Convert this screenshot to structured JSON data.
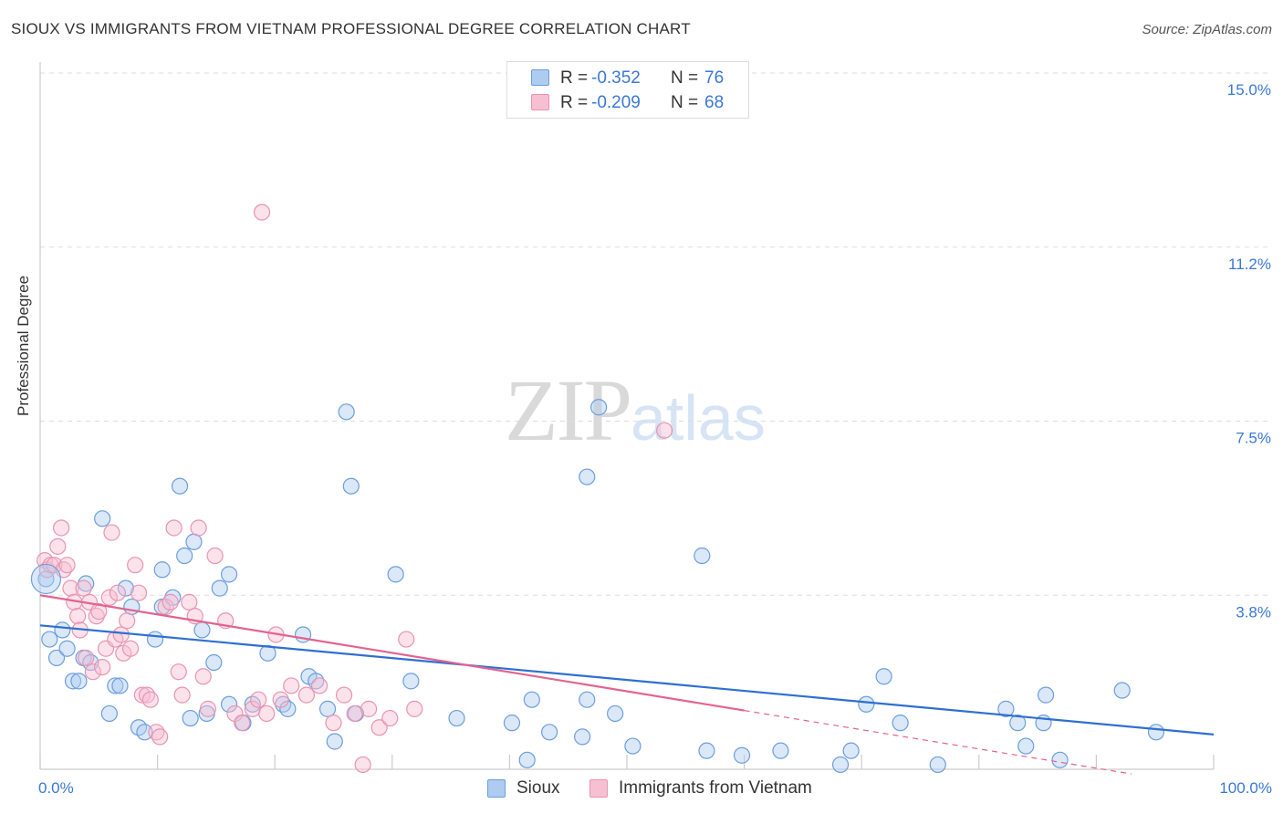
{
  "title": "SIOUX VS IMMIGRANTS FROM VIETNAM PROFESSIONAL DEGREE CORRELATION CHART",
  "source": "Source: ZipAtlas.com",
  "watermark": {
    "zip": "ZIP",
    "atlas": "atlas"
  },
  "colors": {
    "sioux_fill": "#aecbf0",
    "sioux_stroke": "#6c9ede",
    "sioux_line": "#2f6fd0",
    "vietnam_fill": "#f7bfd2",
    "vietnam_stroke": "#e994b0",
    "vietnam_line": "#e2638f",
    "tick_label": "#3a78d6",
    "grid": "#dddddd"
  },
  "legend": {
    "series": [
      {
        "r_label": "R =",
        "r_value": "-0.352",
        "n_label": "N =",
        "n_value": "76"
      },
      {
        "r_label": "R =",
        "r_value": "-0.209",
        "n_label": "N =",
        "n_value": "68"
      }
    ]
  },
  "bottom_legend": {
    "sioux": "Sioux",
    "vietnam": "Immigrants from Vietnam"
  },
  "chart_data": {
    "type": "scatter",
    "title": "SIOUX VS IMMIGRANTS FROM VIETNAM PROFESSIONAL DEGREE CORRELATION CHART",
    "xlabel": "",
    "ylabel": "Professional Degree",
    "xlim": [
      0,
      100
    ],
    "ylim": [
      0,
      15
    ],
    "x_tick_labels": [
      {
        "value": 0,
        "label": "0.0%"
      },
      {
        "value": 100,
        "label": "100.0%"
      }
    ],
    "y_ticks": [
      {
        "value": 3.75,
        "label": "3.8%"
      },
      {
        "value": 7.5,
        "label": "7.5%"
      },
      {
        "value": 11.25,
        "label": "11.2%"
      },
      {
        "value": 15.0,
        "label": "15.0%"
      }
    ],
    "grid": true,
    "series": [
      {
        "name": "Sioux",
        "r": -0.352,
        "n": 76,
        "trend": {
          "x0": 0,
          "y0": 3.1,
          "x1": 100,
          "y1": 0.75,
          "dashed_from": null
        },
        "points": [
          [
            0.5,
            4.1
          ],
          [
            0.8,
            2.8
          ],
          [
            1.4,
            2.4
          ],
          [
            1.9,
            3.0
          ],
          [
            2.3,
            2.6
          ],
          [
            2.8,
            1.9
          ],
          [
            3.3,
            1.9
          ],
          [
            3.7,
            2.4
          ],
          [
            3.9,
            4.0
          ],
          [
            4.3,
            2.3
          ],
          [
            5.3,
            5.4
          ],
          [
            5.9,
            1.2
          ],
          [
            6.4,
            1.8
          ],
          [
            6.8,
            1.8
          ],
          [
            7.3,
            3.9
          ],
          [
            7.8,
            3.5
          ],
          [
            8.4,
            0.9
          ],
          [
            8.9,
            0.8
          ],
          [
            9.8,
            2.8
          ],
          [
            10.4,
            3.5
          ],
          [
            10.4,
            4.3
          ],
          [
            11.3,
            3.7
          ],
          [
            11.9,
            6.1
          ],
          [
            12.3,
            4.6
          ],
          [
            12.8,
            1.1
          ],
          [
            13.1,
            4.9
          ],
          [
            13.8,
            3.0
          ],
          [
            14.2,
            1.2
          ],
          [
            14.8,
            2.3
          ],
          [
            15.3,
            3.9
          ],
          [
            16.1,
            4.2
          ],
          [
            16.1,
            1.4
          ],
          [
            17.3,
            1.0
          ],
          [
            18.1,
            1.4
          ],
          [
            19.4,
            2.5
          ],
          [
            20.7,
            1.4
          ],
          [
            21.1,
            1.3
          ],
          [
            22.4,
            2.9
          ],
          [
            22.9,
            2.0
          ],
          [
            23.5,
            1.9
          ],
          [
            24.5,
            1.3
          ],
          [
            25.1,
            0.6
          ],
          [
            26.1,
            7.7
          ],
          [
            26.5,
            6.1
          ],
          [
            26.9,
            1.2
          ],
          [
            30.3,
            4.2
          ],
          [
            31.6,
            1.9
          ],
          [
            35.5,
            1.1
          ],
          [
            40.2,
            1.0
          ],
          [
            41.5,
            0.2
          ],
          [
            41.9,
            1.5
          ],
          [
            43.4,
            0.8
          ],
          [
            46.2,
            0.7
          ],
          [
            46.6,
            1.5
          ],
          [
            46.6,
            6.3
          ],
          [
            47.6,
            7.8
          ],
          [
            49.0,
            1.2
          ],
          [
            50.5,
            0.5
          ],
          [
            56.4,
            4.6
          ],
          [
            56.8,
            0.4
          ],
          [
            59.8,
            0.3
          ],
          [
            63.1,
            0.4
          ],
          [
            68.2,
            0.1
          ],
          [
            69.1,
            0.4
          ],
          [
            70.4,
            1.4
          ],
          [
            71.9,
            2.0
          ],
          [
            73.3,
            1.0
          ],
          [
            76.5,
            0.1
          ],
          [
            82.3,
            1.3
          ],
          [
            83.3,
            1.0
          ],
          [
            84.0,
            0.5
          ],
          [
            85.5,
            1.0
          ],
          [
            85.7,
            1.6
          ],
          [
            86.9,
            0.2
          ],
          [
            92.2,
            1.7
          ],
          [
            95.1,
            0.8
          ]
        ]
      },
      {
        "name": "Immigrants from Vietnam",
        "r": -0.209,
        "n": 68,
        "trend": {
          "x0": 0,
          "y0": 3.75,
          "x1": 93,
          "y1": -0.1,
          "dashed_from": 60
        },
        "points": [
          [
            0.4,
            4.5
          ],
          [
            0.6,
            4.3
          ],
          [
            0.9,
            4.4
          ],
          [
            1.2,
            4.4
          ],
          [
            1.5,
            4.8
          ],
          [
            1.8,
            5.2
          ],
          [
            2.0,
            4.3
          ],
          [
            2.3,
            4.4
          ],
          [
            2.6,
            3.9
          ],
          [
            2.9,
            3.6
          ],
          [
            3.2,
            3.3
          ],
          [
            3.4,
            3.0
          ],
          [
            3.7,
            3.9
          ],
          [
            3.9,
            2.4
          ],
          [
            4.2,
            3.6
          ],
          [
            4.5,
            2.1
          ],
          [
            4.8,
            3.3
          ],
          [
            5.0,
            3.4
          ],
          [
            5.3,
            2.2
          ],
          [
            5.6,
            2.6
          ],
          [
            5.9,
            3.7
          ],
          [
            6.1,
            5.1
          ],
          [
            6.4,
            2.8
          ],
          [
            6.6,
            3.8
          ],
          [
            6.9,
            2.9
          ],
          [
            7.1,
            2.5
          ],
          [
            7.4,
            3.2
          ],
          [
            7.7,
            2.6
          ],
          [
            8.1,
            4.4
          ],
          [
            8.4,
            3.8
          ],
          [
            8.7,
            1.6
          ],
          [
            9.1,
            1.6
          ],
          [
            9.4,
            1.5
          ],
          [
            9.9,
            0.8
          ],
          [
            10.2,
            0.7
          ],
          [
            10.7,
            3.5
          ],
          [
            11.1,
            3.6
          ],
          [
            11.4,
            5.2
          ],
          [
            11.8,
            2.1
          ],
          [
            12.1,
            1.6
          ],
          [
            12.7,
            3.6
          ],
          [
            13.2,
            3.3
          ],
          [
            13.5,
            5.2
          ],
          [
            13.9,
            2.0
          ],
          [
            14.3,
            1.3
          ],
          [
            14.9,
            4.6
          ],
          [
            15.8,
            3.2
          ],
          [
            16.6,
            1.2
          ],
          [
            17.2,
            1.0
          ],
          [
            18.1,
            1.3
          ],
          [
            18.6,
            1.5
          ],
          [
            18.9,
            12.0
          ],
          [
            19.3,
            1.2
          ],
          [
            20.1,
            2.9
          ],
          [
            20.5,
            1.5
          ],
          [
            21.4,
            1.8
          ],
          [
            22.7,
            1.6
          ],
          [
            23.8,
            1.8
          ],
          [
            25.0,
            1.0
          ],
          [
            25.9,
            1.6
          ],
          [
            26.8,
            1.2
          ],
          [
            27.5,
            0.1
          ],
          [
            28.0,
            1.3
          ],
          [
            28.9,
            0.9
          ],
          [
            29.8,
            1.1
          ],
          [
            31.2,
            2.8
          ],
          [
            31.9,
            1.3
          ],
          [
            53.2,
            7.3
          ]
        ]
      }
    ]
  }
}
